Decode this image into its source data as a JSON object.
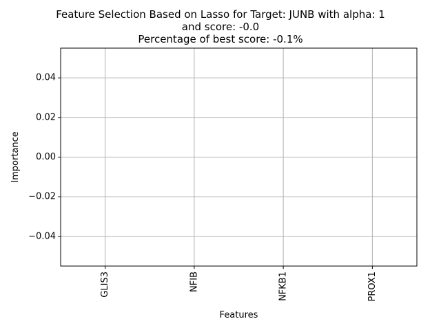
{
  "chart_data": {
    "type": "bar",
    "title": "Feature Selection Based on Lasso for Target: JUNB with alpha: 1 and score: -0.0",
    "subtitle": "Percentage of best score: -0.1%",
    "title_lines": [
      "Feature Selection Based on Lasso for Target: JUNB with alpha: 1",
      "and score: -0.0",
      " Percentage of best score: -0.1%"
    ],
    "xlabel": "Features",
    "ylabel": "Importance",
    "categories": [
      "GLIS3",
      "NFIB",
      "NFKB1",
      "PROX1"
    ],
    "values": [
      0,
      0,
      0,
      0
    ],
    "ylim": [
      -0.055,
      0.055
    ],
    "yticks": [
      -0.04,
      -0.02,
      0.0,
      0.02,
      0.04
    ],
    "ytick_labels": [
      "−0.04",
      "−0.02",
      "0.00",
      "0.02",
      "0.04"
    ],
    "grid": true,
    "colors": {
      "grid": "#b0b0b0",
      "axes": "#000000",
      "bar": "#1f77b4"
    }
  }
}
